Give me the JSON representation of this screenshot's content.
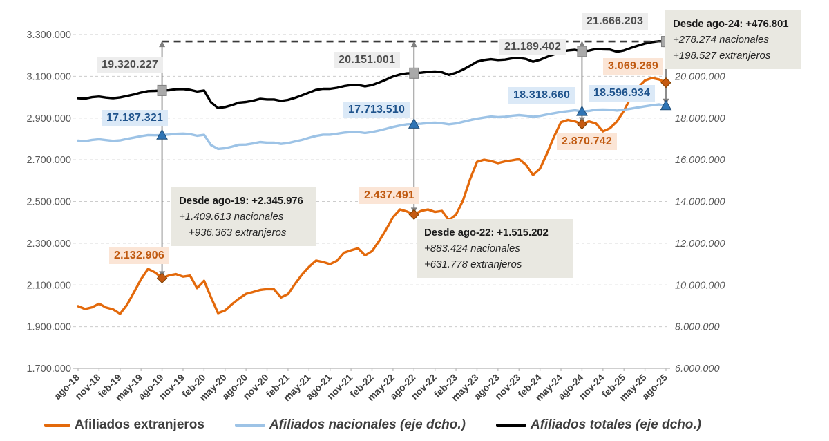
{
  "chart_data": {
    "type": "line",
    "title": "",
    "months_total": 85,
    "grid": "horizontal-dashed",
    "legend_position": "bottom",
    "x_tick_labels": [
      "ago-18",
      "nov-18",
      "feb-19",
      "may-19",
      "ago-19",
      "nov-19",
      "feb-20",
      "may-20",
      "ago-20",
      "nov-20",
      "feb-21",
      "may-21",
      "ago-21",
      "nov-21",
      "feb-22",
      "may-22",
      "ago-22",
      "nov-22",
      "feb-23",
      "may-23",
      "ago-23",
      "nov-23",
      "feb-24",
      "may-24",
      "ago-24",
      "nov-24",
      "feb-25",
      "may-25",
      "ago-25"
    ],
    "left_axis": {
      "applies_to": "Afiliados extranjeros",
      "min": 1700000,
      "max": 3300000,
      "step": 200000,
      "tick_labels": [
        "3.300.000",
        "3.100.000",
        "2.900.000",
        "2.700.000",
        "2.500.000",
        "2.300.000",
        "2.100.000",
        "1.900.000",
        "1.700.000"
      ]
    },
    "right_axis": {
      "applies_to": "Afiliados nacionales y totales",
      "min": 6000000,
      "max": 22000000,
      "step": 2000000,
      "tick_values": [
        20000000,
        18000000,
        16000000,
        14000000,
        12000000,
        10000000,
        8000000,
        6000000
      ],
      "tick_labels": [
        "20.000.000",
        "18.000.000",
        "16.000.000",
        "14.000.000",
        "12.000.000",
        "10.000.000",
        "8.000.000",
        "6.000.000"
      ]
    },
    "series": [
      {
        "id": "extranjeros",
        "name": "Afiliados extranjeros",
        "axis": "left",
        "color": "#e3690b",
        "values": [
          1998000,
          1985000,
          1993000,
          2010000,
          1992000,
          1983000,
          1962000,
          2005000,
          2065000,
          2128000,
          2177000,
          2160000,
          2132906,
          2146000,
          2152000,
          2140000,
          2145000,
          2085000,
          2120000,
          2040000,
          1965000,
          1978000,
          2008000,
          2035000,
          2057000,
          2066000,
          2076000,
          2080000,
          2079000,
          2040000,
          2056000,
          2105000,
          2150000,
          2187000,
          2217000,
          2210000,
          2200000,
          2216000,
          2255000,
          2266000,
          2276000,
          2242000,
          2262000,
          2310000,
          2365000,
          2425000,
          2462000,
          2452000,
          2437491,
          2455000,
          2462000,
          2450000,
          2455000,
          2410000,
          2437000,
          2505000,
          2605000,
          2690000,
          2700000,
          2694000,
          2684000,
          2692000,
          2697000,
          2703000,
          2676000,
          2627000,
          2657000,
          2730000,
          2810000,
          2880000,
          2891000,
          2884000,
          2870742,
          2884000,
          2874000,
          2836000,
          2851000,
          2884000,
          2935000,
          3000000,
          3045000,
          3080000,
          3092000,
          3085000,
          3069269
        ]
      },
      {
        "id": "nacionales",
        "name": "Afiliados nacionales (eje dcho.)",
        "axis": "right",
        "color": "#9dc3e6",
        "values": [
          16920000,
          16890000,
          16950000,
          16985000,
          16940000,
          16905000,
          16930000,
          17000000,
          17060000,
          17130000,
          17185000,
          17175000,
          17187321,
          17205000,
          17240000,
          17252000,
          17225000,
          17150000,
          17195000,
          16700000,
          16520000,
          16550000,
          16630000,
          16720000,
          16725000,
          16780000,
          16850000,
          16820000,
          16820000,
          16760000,
          16800000,
          16880000,
          16950000,
          17050000,
          17140000,
          17200000,
          17200000,
          17245000,
          17300000,
          17330000,
          17330000,
          17280000,
          17330000,
          17400000,
          17480000,
          17570000,
          17640000,
          17700000,
          17713510,
          17725000,
          17760000,
          17780000,
          17750000,
          17700000,
          17740000,
          17820000,
          17900000,
          17970000,
          18020000,
          18070000,
          18040000,
          18060000,
          18110000,
          18140000,
          18110000,
          18060000,
          18100000,
          18170000,
          18230000,
          18290000,
          18330000,
          18370000,
          18318660,
          18340000,
          18400000,
          18410000,
          18400000,
          18360000,
          18400000,
          18450000,
          18510000,
          18560000,
          18610000,
          18650000,
          18596934
        ]
      },
      {
        "id": "totales",
        "name": "Afiliados totales (eje dcho.)",
        "axis": "right",
        "color": "#000000",
        "values": [
          18950000,
          18930000,
          19000000,
          19030000,
          18980000,
          18950000,
          18990000,
          19060000,
          19130000,
          19220000,
          19290000,
          19300000,
          19320227,
          19330000,
          19380000,
          19390000,
          19350000,
          19270000,
          19320000,
          18750000,
          18480000,
          18530000,
          18620000,
          18740000,
          18770000,
          18830000,
          18920000,
          18890000,
          18890000,
          18820000,
          18870000,
          18970000,
          19090000,
          19220000,
          19350000,
          19400000,
          19400000,
          19450000,
          19530000,
          19580000,
          19590000,
          19520000,
          19580000,
          19700000,
          19840000,
          19990000,
          20090000,
          20140000,
          20151001,
          20170000,
          20210000,
          20230000,
          20190000,
          20070000,
          20170000,
          20320000,
          20500000,
          20700000,
          20780000,
          20820000,
          20780000,
          20800000,
          20860000,
          20880000,
          20830000,
          20700000,
          20790000,
          20930000,
          21050000,
          21180000,
          21240000,
          21270000,
          21189402,
          21230000,
          21310000,
          21290000,
          21280000,
          21180000,
          21240000,
          21360000,
          21470000,
          21570000,
          21640000,
          21680000,
          21666203
        ]
      }
    ],
    "milestones": [
      {
        "x_label": "ago-19",
        "month_index": 12,
        "total": "19.320.227",
        "nacionales": "17.187.321",
        "extranjeros": "2.132.906"
      },
      {
        "x_label": "ago-22",
        "month_index": 48,
        "total": "20.151.001",
        "nacionales": "17.713.510",
        "extranjeros": "2.437.491"
      },
      {
        "x_label": "ago-24",
        "month_index": 72,
        "total": "21.189.402",
        "nacionales": "18.318.660",
        "extranjeros": "2.870.742"
      },
      {
        "x_label": "ago-25",
        "month_index": 84,
        "total": "21.666.203",
        "nacionales": "18.596.934",
        "extranjeros": "3.069.269"
      }
    ],
    "reference_line": {
      "value": 21666203,
      "style": "dashed",
      "from_label": "ago-19",
      "to_label": "ago-25"
    }
  },
  "callouts": {
    "ago19": {
      "title": "Desde ago-19: +2.345.976",
      "line2": "+1.409.613 nacionales",
      "line3": "+936.363 extranjeros"
    },
    "ago22": {
      "title": "Desde ago-22: +1.515.202",
      "line2": "+883.424 nacionales",
      "line3": "+631.778 extranjeros"
    },
    "ago24": {
      "title": "Desde ago-24: +476.801",
      "line2": "+278.274 nacionales",
      "line3": "+198.527 extranjeros"
    }
  }
}
